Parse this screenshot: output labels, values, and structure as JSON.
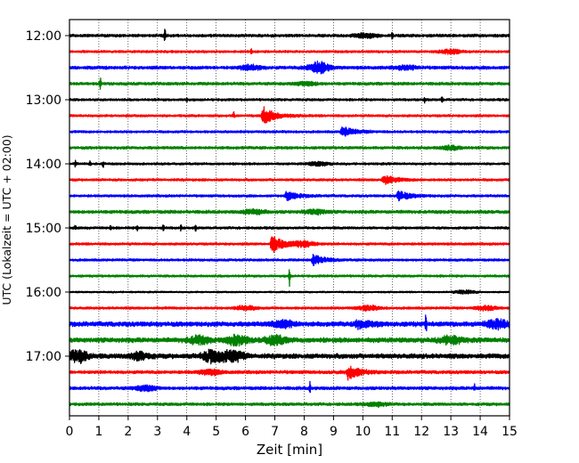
{
  "chart_data": {
    "type": "line",
    "subtype": "helicorder-seismogram",
    "title": "",
    "xlabel": "Zeit  [min]",
    "ylabel": "UTC (Lokalzeit = UTC + 02:00)",
    "xlim": [
      0,
      15
    ],
    "x_ticks": [
      0,
      1,
      2,
      3,
      4,
      5,
      6,
      7,
      8,
      9,
      10,
      11,
      12,
      13,
      14,
      15
    ],
    "y_tick_labels": [
      "12:00",
      "13:00",
      "14:00",
      "15:00",
      "16:00",
      "17:00"
    ],
    "vertical_grid": "dotted",
    "trace_colors": [
      "#000000",
      "#ff0000",
      "#0000ff",
      "#008000"
    ],
    "traces": [
      {
        "start": "12:00",
        "color": "#000000",
        "noise": 0.18,
        "events": [
          [
            3.25,
            1.0,
            "spike"
          ],
          [
            10.1,
            0.3,
            "burst"
          ],
          [
            11.0,
            0.4,
            "spike"
          ]
        ]
      },
      {
        "start": "12:15",
        "color": "#ff0000",
        "noise": 0.15,
        "events": [
          [
            6.2,
            0.35,
            "spike"
          ],
          [
            13.0,
            0.3,
            "burst"
          ]
        ]
      },
      {
        "start": "12:30",
        "color": "#0000ff",
        "noise": 0.2,
        "events": [
          [
            6.2,
            0.35,
            "burst"
          ],
          [
            8.5,
            0.8,
            "burst"
          ],
          [
            11.5,
            0.25,
            "burst"
          ]
        ]
      },
      {
        "start": "12:45",
        "color": "#008000",
        "noise": 0.18,
        "events": [
          [
            1.05,
            0.9,
            "spike"
          ],
          [
            8.1,
            0.25,
            "burst"
          ]
        ]
      },
      {
        "start": "13:00",
        "color": "#000000",
        "noise": 0.15,
        "events": [
          [
            4.0,
            0.3,
            "spike"
          ],
          [
            12.1,
            0.5,
            "spike"
          ],
          [
            12.7,
            0.45,
            "spike"
          ]
        ]
      },
      {
        "start": "13:15",
        "color": "#ff0000",
        "noise": 0.15,
        "events": [
          [
            5.6,
            0.5,
            "spike"
          ],
          [
            6.6,
            1.35,
            "quake"
          ]
        ]
      },
      {
        "start": "13:30",
        "color": "#0000ff",
        "noise": 0.15,
        "events": [
          [
            9.3,
            0.75,
            "quake"
          ]
        ]
      },
      {
        "start": "13:45",
        "color": "#008000",
        "noise": 0.17,
        "events": [
          [
            13.0,
            0.25,
            "burst"
          ]
        ]
      },
      {
        "start": "14:00",
        "color": "#000000",
        "noise": 0.14,
        "events": [
          [
            0.2,
            0.5,
            "spike"
          ],
          [
            0.7,
            0.55,
            "spike"
          ],
          [
            1.15,
            0.6,
            "spike"
          ],
          [
            8.5,
            0.25,
            "burst"
          ]
        ]
      },
      {
        "start": "14:15",
        "color": "#ff0000",
        "noise": 0.15,
        "events": [
          [
            10.7,
            0.75,
            "quake"
          ]
        ]
      },
      {
        "start": "14:30",
        "color": "#0000ff",
        "noise": 0.15,
        "events": [
          [
            7.4,
            0.7,
            "quake"
          ],
          [
            11.2,
            0.75,
            "quake"
          ]
        ]
      },
      {
        "start": "14:45",
        "color": "#008000",
        "noise": 0.2,
        "events": [
          [
            6.3,
            0.3,
            "burst"
          ],
          [
            8.4,
            0.3,
            "burst"
          ]
        ]
      },
      {
        "start": "15:00",
        "color": "#000000",
        "noise": 0.15,
        "events": [
          [
            0.2,
            0.35,
            "spike"
          ],
          [
            1.4,
            0.4,
            "spike"
          ],
          [
            2.3,
            0.4,
            "spike"
          ],
          [
            3.2,
            0.5,
            "spike"
          ],
          [
            3.8,
            0.4,
            "spike"
          ],
          [
            4.3,
            0.35,
            "spike"
          ]
        ]
      },
      {
        "start": "15:15",
        "color": "#ff0000",
        "noise": 0.15,
        "events": [
          [
            6.9,
            1.3,
            "quake"
          ],
          [
            8.0,
            0.4,
            "burst"
          ]
        ]
      },
      {
        "start": "15:30",
        "color": "#0000ff",
        "noise": 0.15,
        "events": [
          [
            8.3,
            0.8,
            "quake"
          ]
        ]
      },
      {
        "start": "15:45",
        "color": "#008000",
        "noise": 0.14,
        "events": [
          [
            7.5,
            1.5,
            "spike"
          ]
        ]
      },
      {
        "start": "16:00",
        "color": "#000000",
        "noise": 0.1,
        "events": [
          [
            13.5,
            0.25,
            "burst"
          ]
        ]
      },
      {
        "start": "16:15",
        "color": "#ff0000",
        "noise": 0.15,
        "events": [
          [
            6.0,
            0.3,
            "burst"
          ],
          [
            10.2,
            0.3,
            "burst"
          ],
          [
            14.2,
            0.3,
            "burst"
          ]
        ]
      },
      {
        "start": "16:30",
        "color": "#0000ff",
        "noise": 0.3,
        "events": [
          [
            7.3,
            0.5,
            "burst"
          ],
          [
            9.8,
            0.7,
            "quake"
          ],
          [
            12.15,
            1.3,
            "spike"
          ],
          [
            14.6,
            0.6,
            "burst"
          ]
        ]
      },
      {
        "start": "16:45",
        "color": "#008000",
        "noise": 0.3,
        "events": [
          [
            4.4,
            0.5,
            "burst"
          ],
          [
            5.7,
            0.65,
            "burst"
          ],
          [
            7.0,
            0.6,
            "burst"
          ],
          [
            13.0,
            0.5,
            "burst"
          ]
        ]
      },
      {
        "start": "17:00",
        "color": "#000000",
        "noise": 0.3,
        "events": [
          [
            0.3,
            0.8,
            "burst"
          ],
          [
            2.4,
            0.5,
            "burst"
          ],
          [
            4.9,
            0.9,
            "burst"
          ],
          [
            5.6,
            0.7,
            "burst"
          ]
        ]
      },
      {
        "start": "17:15",
        "color": "#ff0000",
        "noise": 0.2,
        "events": [
          [
            9.5,
            1.1,
            "quake"
          ],
          [
            4.8,
            0.35,
            "burst"
          ]
        ]
      },
      {
        "start": "17:30",
        "color": "#0000ff",
        "noise": 0.2,
        "events": [
          [
            8.2,
            0.8,
            "spike"
          ],
          [
            13.8,
            0.6,
            "spike"
          ],
          [
            2.6,
            0.35,
            "burst"
          ]
        ]
      },
      {
        "start": "17:45",
        "color": "#008000",
        "noise": 0.18,
        "events": [
          [
            10.5,
            0.25,
            "burst"
          ]
        ]
      }
    ]
  }
}
